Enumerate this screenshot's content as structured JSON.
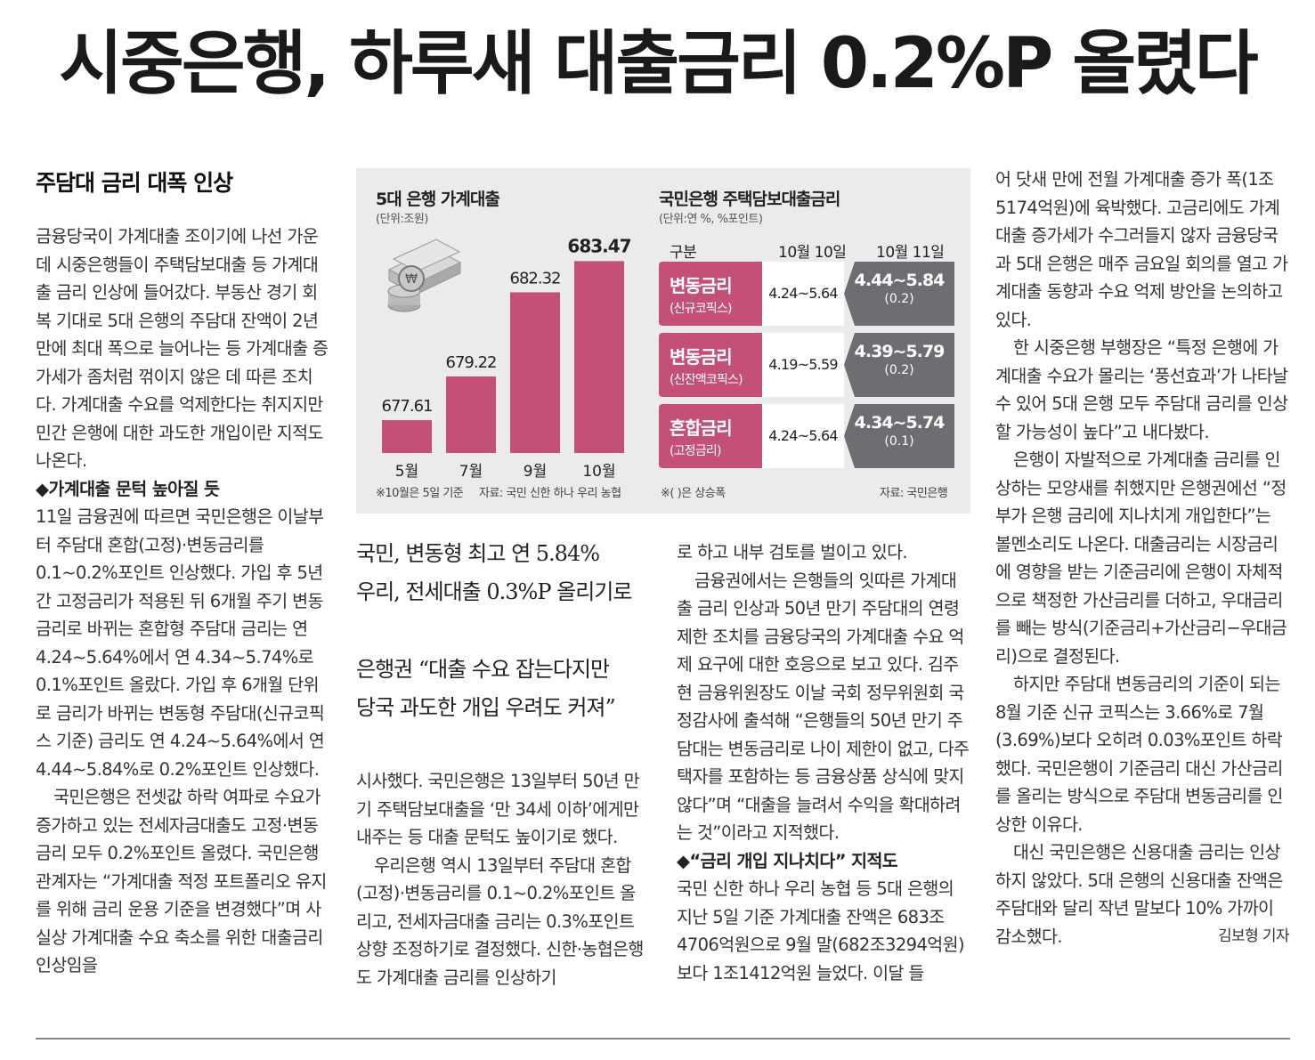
{
  "headline": "시중은행, 하루새 대출금리 0.2%P 올렸다",
  "section_head": "주담대 금리 대폭 인상",
  "col1": {
    "p1": "금융당국이 가계대출 조이기에 나선 가운데 시중은행들이 주택담보대출 등 가계대출 금리 인상에 들어갔다. 부동산 경기 회복 기대로 5대 은행의 주담대 잔액이 2년 만에 최대 폭으로 늘어나는 등 가계대출 증가세가 좀처럼 꺾이지 않은 데 따른 조치다. 가계대출 수요를 억제한다는 취지지만 민간 은행에 대한 과도한 개입이란 지적도 나온다.",
    "sub1": "◆가계대출 문턱 높아질 듯",
    "p2": "11일 금융권에 따르면 국민은행은 이날부터 주담대 혼합(고정)·변동금리를 0.1~0.2%포인트 인상했다. 가입 후 5년간 고정금리가 적용된 뒤 6개월 주기 변동금리로 바뀌는 혼합형 주담대 금리는 연 4.24~5.64%에서 연 4.34~5.74%로 0.1%포인트 올랐다. 가입 후 6개월 단위로 금리가 바뀌는 변동형 주담대(신규코픽스 기준) 금리도 연 4.24~5.64%에서 연 4.44~5.84%로 0.2%포인트 인상했다.",
    "p3": "국민은행은 전셋값 하락 여파로 수요가 증가하고 있는 전세자금대출도 고정·변동금리 모두 0.2%포인트 올렸다. 국민은행 관계자는 “가계대출 적정 포트폴리오 유지를 위해 금리 운용 기준을 변경했다”며 사실상 가계대출 수요 축소를 위한 대출금리 인상임을"
  },
  "subheads": {
    "s1_line1": "국민, 변동형 최고 연 5.84%",
    "s1_line2": "우리, 전세대출 0.3%P 올리기로",
    "s2_line1": "은행권 “대출 수요 잡는다지만",
    "s2_line2": "당국 과도한 개입 우려도 커져”"
  },
  "col2": {
    "p1": "시사했다. 국민은행은 13일부터 50년 만기 주택담보대출을 ‘만 34세 이하’에게만 내주는 등 대출 문턱도 높이기로 했다.",
    "p2": "우리은행 역시 13일부터 주담대 혼합(고정)·변동금리를 0.1~0.2%포인트 올리고, 전세자금대출 금리는 0.3%포인트 상향 조정하기로 결정했다. 신한·농협은행도 가계대출 금리를 인상하기"
  },
  "col3": {
    "p1": "로 하고 내부 검토를 벌이고 있다.",
    "p2": "금융권에서는 은행들의 잇따른 가계대출 금리 인상과 50년 만기 주담대의 연령제한 조치를 금융당국의 가계대출 수요 억제 요구에 대한 호응으로 보고 있다. 김주현 금융위원장도 이날 국회 정무위원회 국정감사에 출석해 “은행들의 50년 만기 주담대는 변동금리로 나이 제한이 없고, 다주택자를 포함하는 등 금융상품 상식에 맞지 않다”며 “대출을 늘려서 수익을 확대하려는 것”이라고 지적했다.",
    "sub": "◆“금리 개입 지나치다” 지적도",
    "p3": "국민 신한 하나 우리 농협 등 5대 은행의 지난 5일 기준 가계대출 잔액은 683조4706억원으로 9월 말(682조3294억원)보다 1조1412억원 늘었다. 이달 들"
  },
  "col4": {
    "p1": "어 닷새 만에 전월 가계대출 증가 폭(1조5174억원)에 육박했다. 고금리에도 가계대출 증가세가 수그러들지 않자 금융당국과 5대 은행은 매주 금요일 회의를 열고 가계대출 동향과 수요 억제 방안을 논의하고 있다.",
    "p2": "한 시중은행 부행장은 “특정 은행에 가계대출 수요가 몰리는 ‘풍선효과’가 나타날 수 있어 5대 은행 모두 주담대 금리를 인상할 가능성이 높다”고 내다봤다.",
    "p3": "은행이 자발적으로 가계대출 금리를 인상하는 모양새를 취했지만 은행권에선 “정부가 은행 금리에 지나치게 개입한다”는 볼멘소리도 나온다. 대출금리는 시장금리에 영향을 받는 기준금리에 은행이 자체적으로 책정한 가산금리를 더하고, 우대금리를 빼는 방식(기준금리+가산금리−우대금리)으로 결정된다.",
    "p4": "하지만 주담대 변동금리의 기준이 되는 8월 기준 신규 코픽스는 3.66%로 7월(3.69%)보다 오히려 0.03%포인트 하락했다. 국민은행이 기준금리 대신 가산금리를 올리는 방식으로 주담대 변동금리를 인상한 이유다.",
    "p5": "대신 국민은행은 신용대출 금리는 인상하지 않았다. 5대 은행의 신용대출 잔액은 주담대와 달리 작년 말보다 10% 가까이 감소했다.",
    "byline": "김보형 기자"
  },
  "graphic": {
    "bar_title": "5대 은행 가계대출",
    "bar_unit": "(단위:조원)",
    "bar_note": "※10월은 5일 기준",
    "bar_source": "자료: 국민 신한 하나 우리 농협",
    "table_title": "국민은행 주택담보대출금리",
    "table_unit": "(단위:연 %, %포인트)",
    "table_note": "※( )은 상승폭",
    "table_source": "자료: 국민은행",
    "bar_color": "#c4507a",
    "new_rate_color": "#6d6e71"
  },
  "chart_data": {
    "type": "bar",
    "categories": [
      "5월",
      "7월",
      "9월",
      "10월"
    ],
    "values": [
      677.61,
      679.22,
      682.32,
      683.47
    ],
    "value_labels": [
      "677.61",
      "679.22",
      "682.32",
      "683.47"
    ],
    "title": "5대 은행 가계대출",
    "ylabel": "(단위:조원)"
  },
  "rate_table": {
    "headers": [
      "구분",
      "10월 10일",
      "10월 11일"
    ],
    "rows": [
      {
        "label": "변동금리",
        "sublabel": "(신규코픽스)",
        "oct10": "4.24~5.64",
        "oct11": "4.44~5.84",
        "change": "(0.2)"
      },
      {
        "label": "변동금리",
        "sublabel": "(신잔액코픽스)",
        "oct10": "4.19~5.59",
        "oct11": "4.39~5.79",
        "change": "(0.2)"
      },
      {
        "label": "혼합금리",
        "sublabel": "(고정금리)",
        "oct10": "4.24~5.64",
        "oct11": "4.34~5.74",
        "change": "(0.1)"
      }
    ]
  }
}
